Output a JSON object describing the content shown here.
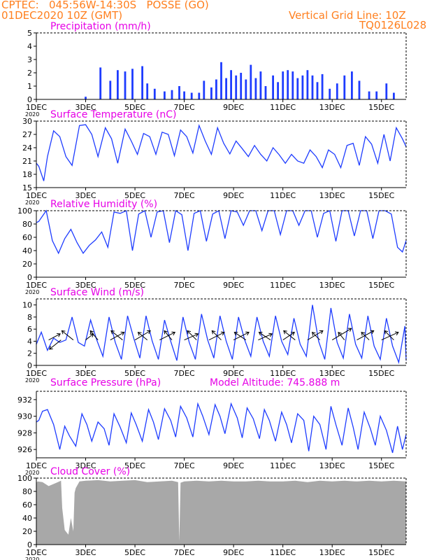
{
  "header": {
    "line1": "CPTEC:   045:56W-14:30S   POSSE (GO)",
    "line2": "01DEC2020 10Z (GMT)",
    "grid_note": "Vertical Grid Line: 10Z",
    "code": "TQ0126L028"
  },
  "colors": {
    "header": "#ff7f1e",
    "title": "#e600e6",
    "line": "#1e3cff",
    "cloud": "#a8a8a8",
    "axis": "#000000"
  },
  "x_ticks": [
    "1DEC",
    "3DEC",
    "5DEC",
    "7DEC",
    "9DEC",
    "11DEC",
    "13DEC",
    "15DEC"
  ],
  "year_label": "2020",
  "model_altitude": "Model Altitude: 745.888  m",
  "chart_data": [
    {
      "type": "bar",
      "title": "Precipitation (mm/h)",
      "ylim": [
        0,
        5
      ],
      "yticks": [
        "0",
        "1",
        "2",
        "3",
        "4",
        "5"
      ],
      "x": [
        3.0,
        3.6,
        4.0,
        4.3,
        4.6,
        4.9,
        5.3,
        5.5,
        5.8,
        6.2,
        6.5,
        6.8,
        7.0,
        7.3,
        7.6,
        7.8,
        8.1,
        8.3,
        8.5,
        8.7,
        8.9,
        9.1,
        9.3,
        9.5,
        9.7,
        9.9,
        10.1,
        10.3,
        10.6,
        10.8,
        11.0,
        11.2,
        11.4,
        11.6,
        11.8,
        12.0,
        12.2,
        12.4,
        12.6,
        12.9,
        13.2,
        13.5,
        13.8,
        14.1,
        14.5,
        14.8,
        15.2,
        15.5
      ],
      "values": [
        0.2,
        2.4,
        1.4,
        2.2,
        2.1,
        2.3,
        2.5,
        1.2,
        0.8,
        0.6,
        0.7,
        1.0,
        0.6,
        0.5,
        0.5,
        1.4,
        0.9,
        1.5,
        2.8,
        1.6,
        2.2,
        1.8,
        2.0,
        1.5,
        2.6,
        1.6,
        2.1,
        1.0,
        1.8,
        1.3,
        2.1,
        2.2,
        2.1,
        1.6,
        1.8,
        2.2,
        1.8,
        1.3,
        1.9,
        0.8,
        1.2,
        1.8,
        2.1,
        1.4,
        0.6,
        0.6,
        1.2,
        0.5
      ]
    },
    {
      "type": "line",
      "title": "Surface Temperature (nC)",
      "ylim": [
        15,
        30
      ],
      "yticks": [
        "15",
        "18",
        "21",
        "24",
        "27",
        "30"
      ],
      "x": [
        1.0,
        1.1,
        1.3,
        1.45,
        1.7,
        1.95,
        2.2,
        2.45,
        2.75,
        3.0,
        3.25,
        3.5,
        3.8,
        4.05,
        4.3,
        4.6,
        4.85,
        5.1,
        5.35,
        5.6,
        5.85,
        6.1,
        6.35,
        6.6,
        6.85,
        7.1,
        7.35,
        7.6,
        7.85,
        8.1,
        8.35,
        8.6,
        8.85,
        9.1,
        9.35,
        9.6,
        9.85,
        10.1,
        10.35,
        10.6,
        10.85,
        11.1,
        11.35,
        11.6,
        11.85,
        12.1,
        12.35,
        12.6,
        12.85,
        13.1,
        13.35,
        13.6,
        13.85,
        14.1,
        14.35,
        14.6,
        14.85,
        15.1,
        15.35,
        15.6,
        15.85,
        16.0
      ],
      "values": [
        20.5,
        19.8,
        16.5,
        22,
        27.8,
        26.5,
        22,
        20,
        29,
        29.2,
        27,
        22,
        28.5,
        26,
        20.5,
        28.2,
        25.5,
        22.5,
        27.2,
        26.5,
        22.5,
        27.5,
        27,
        22.2,
        28,
        26.5,
        22.8,
        29,
        25.5,
        22.5,
        28.5,
        25,
        22.6,
        25.5,
        23.8,
        22,
        24.5,
        22.5,
        21,
        24,
        22.4,
        20.5,
        22.5,
        21,
        20.5,
        23.5,
        22,
        19.5,
        23.5,
        22.5,
        19.5,
        24.5,
        25,
        20,
        26.5,
        24.8,
        20.5,
        27,
        21,
        28.5,
        26,
        24.2
      ]
    },
    {
      "type": "line",
      "title": "Relative Humidity (%)",
      "ylim": [
        0,
        100
      ],
      "yticks": [
        "0",
        "20",
        "40",
        "60",
        "80",
        "100"
      ],
      "x": [
        1.0,
        1.1,
        1.4,
        1.65,
        1.9,
        2.15,
        2.4,
        2.65,
        2.9,
        3.15,
        3.4,
        3.65,
        3.9,
        4.15,
        4.4,
        4.65,
        4.9,
        5.15,
        5.4,
        5.65,
        5.9,
        6.15,
        6.4,
        6.65,
        6.9,
        7.15,
        7.4,
        7.65,
        7.9,
        8.15,
        8.4,
        8.65,
        8.9,
        9.15,
        9.4,
        9.65,
        9.9,
        10.15,
        10.4,
        10.65,
        10.9,
        11.15,
        11.4,
        11.65,
        11.9,
        12.15,
        12.4,
        12.65,
        12.9,
        13.15,
        13.4,
        13.65,
        13.9,
        14.15,
        14.4,
        14.65,
        14.9,
        15.15,
        15.4,
        15.65,
        15.85,
        16.0
      ],
      "values": [
        82,
        84,
        100,
        55,
        36,
        58,
        72,
        52,
        36,
        48,
        56,
        68,
        45,
        98,
        96,
        100,
        40,
        95,
        100,
        60,
        98,
        100,
        52,
        100,
        94,
        40,
        96,
        100,
        54,
        95,
        100,
        58,
        100,
        98,
        78,
        100,
        100,
        70,
        100,
        100,
        64,
        100,
        100,
        78,
        100,
        100,
        60,
        96,
        100,
        54,
        100,
        100,
        62,
        100,
        100,
        58,
        100,
        100,
        95,
        45,
        38,
        55
      ]
    },
    {
      "type": "line",
      "title": "Surface Wind (m/s)",
      "ylim": [
        0,
        11
      ],
      "yticks": [
        "0",
        "2",
        "4",
        "6",
        "8",
        "10"
      ],
      "x": [
        1.0,
        1.2,
        1.45,
        1.7,
        1.95,
        2.2,
        2.45,
        2.7,
        2.95,
        3.2,
        3.45,
        3.7,
        3.95,
        4.2,
        4.45,
        4.7,
        4.95,
        5.2,
        5.45,
        5.7,
        5.95,
        6.2,
        6.45,
        6.7,
        6.95,
        7.2,
        7.45,
        7.7,
        7.95,
        8.2,
        8.45,
        8.7,
        8.95,
        9.2,
        9.45,
        9.7,
        9.95,
        10.2,
        10.45,
        10.7,
        10.95,
        11.2,
        11.45,
        11.7,
        11.95,
        12.2,
        12.45,
        12.7,
        12.95,
        13.2,
        13.45,
        13.7,
        13.95,
        14.2,
        14.45,
        14.7,
        14.95,
        15.2,
        15.45,
        15.7,
        15.95,
        16.0
      ],
      "values": [
        3.5,
        5.5,
        2.5,
        4.5,
        3.8,
        4.2,
        8.0,
        3.8,
        3.2,
        7.5,
        4.2,
        1.5,
        8.0,
        3.8,
        1.0,
        8.2,
        4.5,
        1.2,
        8.2,
        4.0,
        1.0,
        7.5,
        4.0,
        0.8,
        8.0,
        3.8,
        1.0,
        8.5,
        4.2,
        1.2,
        8.2,
        4.0,
        1.0,
        8.0,
        4.2,
        1.5,
        8.0,
        4.0,
        1.5,
        8.2,
        4.0,
        1.8,
        7.8,
        3.5,
        1.5,
        10.0,
        4.0,
        1.0,
        9.5,
        3.8,
        1.2,
        8.5,
        3.5,
        1.2,
        8.2,
        3.2,
        1.0,
        7.8,
        3.2,
        0.5,
        6.5,
        0.8
      ],
      "arrows_x": [
        1.5,
        2.0,
        2.5,
        3.0,
        3.5,
        4.0,
        4.5,
        5.0,
        5.5,
        6.0,
        6.5,
        7.0,
        7.5,
        8.0,
        8.5,
        9.0,
        9.5,
        10.0,
        10.5,
        11.0,
        11.5,
        12.0,
        12.5,
        13.0,
        13.5,
        14.0,
        14.5,
        15.0,
        15.5
      ],
      "arrows_u": [
        1.5,
        -1.5,
        -1.5,
        1.0,
        -1.0,
        1.8,
        -1.5,
        2.0,
        -1.2,
        2.0,
        -1.0,
        1.8,
        -1.2,
        2.0,
        -1.2,
        2.0,
        -1.5,
        1.8,
        -1.5,
        1.5,
        -1.5,
        2.0,
        -1.0,
        2.5,
        -0.8,
        2.2,
        -1.0,
        2.2,
        -1.2
      ],
      "arrows_v": [
        0.8,
        -1.2,
        1.2,
        0.8,
        1.2,
        1.0,
        1.2,
        1.2,
        1.0,
        1.0,
        1.2,
        0.8,
        1.2,
        1.0,
        1.2,
        1.0,
        1.0,
        0.8,
        1.0,
        1.0,
        1.2,
        1.2,
        1.0,
        1.5,
        1.0,
        1.2,
        1.0,
        1.0,
        1.2
      ]
    },
    {
      "type": "line",
      "title": "Surface Pressure (hPa)",
      "ylim": [
        925,
        933
      ],
      "yticks": [
        "926",
        "928",
        "930",
        "932"
      ],
      "x": [
        1.0,
        1.1,
        1.25,
        1.45,
        1.7,
        1.95,
        2.15,
        2.35,
        2.6,
        2.85,
        3.05,
        3.25,
        3.5,
        3.75,
        3.95,
        4.15,
        4.4,
        4.65,
        4.85,
        5.05,
        5.3,
        5.55,
        5.75,
        5.95,
        6.2,
        6.45,
        6.65,
        6.85,
        7.1,
        7.35,
        7.55,
        7.75,
        8.0,
        8.25,
        8.45,
        8.65,
        8.9,
        9.15,
        9.35,
        9.55,
        9.8,
        10.05,
        10.25,
        10.45,
        10.7,
        10.95,
        11.15,
        11.35,
        11.6,
        11.85,
        12.05,
        12.25,
        12.5,
        12.75,
        12.95,
        13.15,
        13.4,
        13.65,
        13.85,
        14.05,
        14.3,
        14.55,
        14.75,
        14.95,
        15.2,
        15.45,
        15.65,
        15.85,
        16.0
      ],
      "values": [
        929.3,
        929.5,
        930.6,
        930.8,
        929.0,
        926.0,
        928.8,
        927.6,
        926.4,
        930.3,
        929.0,
        927.0,
        929.3,
        928.5,
        926.5,
        930.3,
        928.7,
        926.8,
        930.4,
        929.0,
        927.0,
        930.8,
        929.3,
        927.2,
        930.9,
        929.5,
        927.5,
        931.2,
        929.8,
        927.5,
        931.5,
        930.0,
        927.8,
        931.4,
        930.0,
        927.9,
        931.5,
        929.8,
        927.4,
        931.0,
        929.7,
        927.3,
        930.8,
        929.5,
        927.0,
        930.5,
        929.0,
        926.8,
        930.3,
        929.5,
        925.8,
        930.0,
        929.0,
        926.0,
        931.2,
        929.0,
        926.5,
        931.0,
        928.7,
        926.0,
        930.5,
        928.5,
        926.5,
        930.0,
        928.3,
        925.6,
        928.8,
        926.0,
        927.8
      ]
    },
    {
      "type": "area",
      "title": "Cloud Cover (%)",
      "ylim": [
        0,
        100
      ],
      "yticks": [
        "0",
        "20",
        "40",
        "60",
        "80",
        "100"
      ],
      "x": [
        1.0,
        1.05,
        1.25,
        1.5,
        1.75,
        2.0,
        2.05,
        2.15,
        2.3,
        2.4,
        2.5,
        2.55,
        2.6,
        2.75,
        3.0,
        3.5,
        4.0,
        4.5,
        5.0,
        5.5,
        6.0,
        6.5,
        6.75,
        6.8,
        6.85,
        7.0,
        7.5,
        8.0,
        8.5,
        9.0,
        9.5,
        10.0,
        10.5,
        11.0,
        11.5,
        12.0,
        12.5,
        13.0,
        13.5,
        14.0,
        14.5,
        15.0,
        15.5,
        16.0
      ],
      "values": [
        93,
        95,
        94,
        88,
        92,
        96,
        55,
        22,
        15,
        40,
        20,
        78,
        85,
        95,
        96,
        97,
        95,
        96,
        97,
        94,
        95,
        96,
        94,
        5,
        93,
        95,
        96,
        95,
        96,
        95,
        95,
        96,
        95,
        95,
        96,
        94,
        96,
        95,
        96,
        95,
        96,
        95,
        96,
        95
      ]
    }
  ]
}
